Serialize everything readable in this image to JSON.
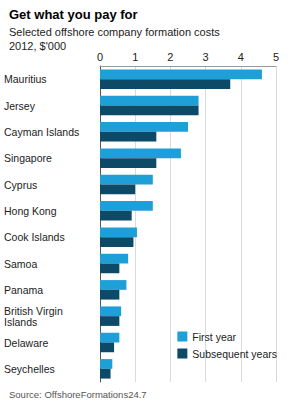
{
  "chart_data": {
    "type": "bar",
    "title": "Get what you pay for",
    "subtitle": "Selected offshore company formation costs",
    "xlabel": "2012, $'000",
    "source": "Source: OffshoreFormations24.7",
    "orientation": "horizontal",
    "categories": [
      "Mauritius",
      "Jersey",
      "Cayman Islands",
      "Singapore",
      "Cyprus",
      "Hong Kong",
      "Cook Islands",
      "Samoa",
      "Panama",
      "British Virgin Islands",
      "Delaware",
      "Seychelles"
    ],
    "series": [
      {
        "name": "First year",
        "color": "#1e9fd8",
        "values": [
          4.6,
          2.8,
          2.5,
          2.3,
          1.5,
          1.5,
          1.05,
          0.8,
          0.75,
          0.6,
          0.55,
          0.35
        ]
      },
      {
        "name": "Subsequent years",
        "color": "#0d4a67",
        "values": [
          3.7,
          2.8,
          1.6,
          1.6,
          1.0,
          0.9,
          0.95,
          0.55,
          0.55,
          0.55,
          0.4,
          0.3
        ]
      }
    ],
    "xlim": [
      0,
      5
    ],
    "xticks": [
      0,
      1,
      2,
      3,
      4,
      5
    ],
    "grid": true,
    "legend": "lower right"
  }
}
